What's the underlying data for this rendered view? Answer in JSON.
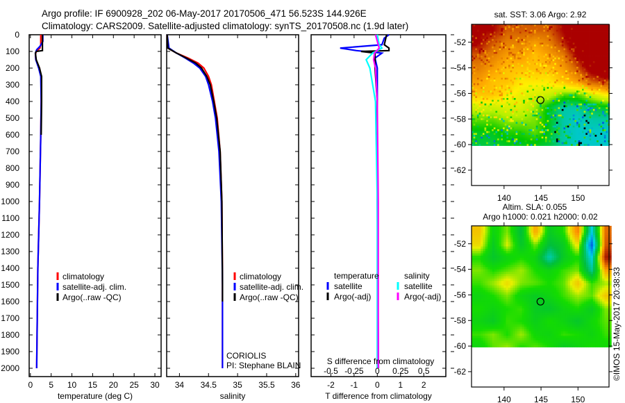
{
  "header": {
    "line1": "Argo profile: IF 6900928_202 06-May-2017 20170506_471 56.523S 144.926E",
    "line2": "Climatology: CARS2009. Satellite-adjusted climatology: synTS_20170508.nc (1.9d later)"
  },
  "credit": "©IMOS 15-May-2017 20:38:33",
  "colors": {
    "climatology": "#ff0000",
    "satellite": "#0000ff",
    "argo": "#000000",
    "sal_satellite": "#00ffff",
    "sal_argo": "#ff00ff"
  },
  "chart_data": [
    {
      "type": "line",
      "id": "temperature",
      "xlabel": "temperature (deg C)",
      "ylabel": "depth",
      "xlim": [
        -0.3,
        31.5
      ],
      "ylim": [
        2050,
        0
      ],
      "xticks": [
        0,
        5,
        10,
        15,
        20,
        25,
        30
      ],
      "yticks": [
        0,
        100,
        200,
        300,
        400,
        500,
        600,
        700,
        800,
        900,
        1000,
        1100,
        1200,
        1300,
        1400,
        1500,
        1600,
        1700,
        1800,
        1900,
        2000
      ],
      "legend": [
        "climatology",
        "satellite-adj. clim.",
        "Argo(..raw -QC)"
      ],
      "series": [
        {
          "name": "climatology",
          "color": "#ff0000",
          "depth": [
            0,
            60,
            80,
            100,
            120,
            150,
            200,
            250,
            400,
            600,
            1000,
            1400,
            2000
          ],
          "values": [
            2.5,
            2.5,
            2.3,
            1.4,
            1.2,
            1.3,
            2.2,
            2.6,
            2.6,
            2.5,
            2.2,
            1.8,
            1.5
          ]
        },
        {
          "name": "satellite-adj. clim.",
          "color": "#0000ff",
          "depth": [
            0,
            40,
            70,
            90,
            110,
            150,
            200,
            250,
            400,
            600,
            1000,
            1400,
            2000
          ],
          "values": [
            3.0,
            3.0,
            2.3,
            1.5,
            1.2,
            1.3,
            2.0,
            2.5,
            2.6,
            2.5,
            2.2,
            1.8,
            1.5
          ]
        },
        {
          "name": "Argo(..raw -QC)",
          "color": "#000000",
          "depth": [
            0,
            50,
            80,
            95,
            100,
            110,
            150,
            200,
            250,
            400,
            600
          ],
          "values": [
            2.9,
            2.9,
            2.9,
            2.9,
            1.4,
            1.2,
            1.4,
            2.2,
            2.7,
            2.7,
            2.6
          ]
        }
      ]
    },
    {
      "type": "line",
      "id": "salinity",
      "xlabel": "salinity",
      "xlim": [
        33.78,
        36.05
      ],
      "ylim": [
        2050,
        0
      ],
      "xticks": [
        34,
        34.5,
        35,
        35.5,
        36
      ],
      "legend": [
        "climatology",
        "satellite-adj. clim.",
        "Argo(..raw -QC)"
      ],
      "annotation": [
        "CORIOLIS",
        "PI: Stephane BLAIN"
      ],
      "series": [
        {
          "name": "climatology",
          "color": "#ff0000",
          "depth": [
            0,
            80,
            110,
            140,
            170,
            200,
            250,
            300,
            400,
            500,
            700,
            1000,
            1500,
            2000
          ],
          "values": [
            33.79,
            33.8,
            33.95,
            34.15,
            34.32,
            34.42,
            34.5,
            34.55,
            34.6,
            34.65,
            34.7,
            34.73,
            34.74,
            34.74
          ]
        },
        {
          "name": "satellite-adj. clim.",
          "color": "#0000ff",
          "depth": [
            0,
            80,
            110,
            140,
            170,
            200,
            250,
            300,
            400,
            500,
            700,
            1000,
            1500,
            2000
          ],
          "values": [
            33.79,
            33.82,
            33.95,
            34.1,
            34.24,
            34.35,
            34.45,
            34.5,
            34.57,
            34.62,
            34.68,
            34.72,
            34.74,
            34.74
          ]
        },
        {
          "name": "Argo(..raw -QC)",
          "color": "#000000",
          "depth": [
            0,
            80,
            110,
            140,
            170,
            200,
            250,
            300,
            400,
            500,
            700,
            1000,
            1500,
            1600
          ],
          "values": [
            33.79,
            33.8,
            33.95,
            34.12,
            34.28,
            34.38,
            34.47,
            34.53,
            34.59,
            34.64,
            34.7,
            34.73,
            34.74,
            34.74
          ]
        }
      ]
    },
    {
      "type": "line",
      "id": "difference",
      "xlabel": "T difference from climatology",
      "x2label": "S difference from climatology",
      "xlim": [
        -2.85,
        2.95
      ],
      "ylim": [
        2050,
        0
      ],
      "xticks": [
        -2,
        -1,
        0,
        1,
        2
      ],
      "x2ticks": [
        -0.5,
        -0.25,
        0,
        0.25,
        0.5
      ],
      "x2tick_labels": [
        "-0.5",
        "-0.25",
        "0",
        "0.25",
        "0.5"
      ],
      "legend_titles": [
        "temperature",
        "salinity"
      ],
      "legend": [
        "satellite",
        "Argo(-adj)",
        "satellite",
        "Argo(-adj)"
      ],
      "series": [
        {
          "name": "T satellite",
          "color": "#0000ff",
          "scale": "T",
          "depth": [
            0,
            20,
            60,
            80,
            95,
            110,
            140,
            200,
            400,
            1000,
            2000
          ],
          "values": [
            0.5,
            0.3,
            0.2,
            -1.6,
            -0.9,
            0.2,
            -0.1,
            0.0,
            0.0,
            0.0,
            0.05
          ]
        },
        {
          "name": "T Argo(-adj)",
          "color": "#000000",
          "scale": "T",
          "depth": [
            0,
            60,
            80,
            95,
            100,
            110,
            200,
            400,
            600
          ],
          "values": [
            0.4,
            0.3,
            0.5,
            0.5,
            -0.7,
            -0.1,
            -0.1,
            0.0,
            0.0
          ]
        },
        {
          "name": "S satellite",
          "color": "#00ffff",
          "scale": "S",
          "depth": [
            0,
            60,
            80,
            110,
            150,
            200,
            400,
            1000,
            2000
          ],
          "values": [
            0.0,
            0.02,
            0.05,
            -0.05,
            -0.12,
            -0.08,
            -0.02,
            0.0,
            0.0
          ]
        },
        {
          "name": "S Argo(-adj)",
          "color": "#ff00ff",
          "scale": "S",
          "depth": [
            0,
            80,
            110,
            150,
            200,
            400,
            1000,
            2000
          ],
          "values": [
            -0.02,
            0.02,
            -0.03,
            -0.04,
            -0.02,
            0.0,
            0.01,
            0.01
          ]
        }
      ]
    },
    {
      "type": "heatmap",
      "id": "sst_map",
      "title": "sat. SST: 3.06 Argo: 2.92",
      "xlim": [
        135.6,
        154.2
      ],
      "ylim": [
        -63.2,
        -50.6
      ],
      "xticks": [
        140,
        145,
        150
      ],
      "yticks": [
        -52,
        -54,
        -56,
        -58,
        -60,
        -62
      ],
      "ytick_labels": [
        "-52",
        "-54",
        "-56",
        "-58",
        "-60",
        "-62"
      ],
      "grid_lon": [
        136.5,
        138.4,
        140.3,
        142.2,
        144.1,
        146.0,
        147.9,
        149.8,
        151.7,
        153.6
      ],
      "grid_lat": [
        -51,
        -52,
        -53,
        -54,
        -55,
        -56,
        -57,
        -58,
        -59,
        -60
      ],
      "values": [
        [
          7,
          7,
          6,
          6,
          6,
          6,
          7,
          8,
          8,
          8
        ],
        [
          7,
          6,
          5.5,
          5.5,
          5,
          5.5,
          6.5,
          8,
          8,
          8
        ],
        [
          6,
          5.5,
          5,
          5,
          4.5,
          5,
          5.5,
          7,
          8,
          8
        ],
        [
          5.5,
          5,
          4.5,
          4.5,
          4.5,
          4.5,
          5,
          6,
          7.5,
          8
        ],
        [
          5,
          4.5,
          4.5,
          4,
          4,
          4,
          4.5,
          5,
          6,
          6.5
        ],
        [
          4.5,
          4.5,
          4,
          3.7,
          3.6,
          3.5,
          3,
          3,
          3.5,
          4
        ],
        [
          3.5,
          3.5,
          3.6,
          3.6,
          3.2,
          2.6,
          2.2,
          2.2,
          2.5,
          2.6
        ],
        [
          3,
          3,
          3.2,
          3.2,
          3.1,
          2.6,
          2.2,
          2.1,
          2.2,
          2.2
        ],
        [
          2.6,
          2.6,
          2.8,
          2.8,
          3,
          2.6,
          2.2,
          2.1,
          2.1,
          2.1
        ],
        [
          2.5,
          2.5,
          2.6,
          2.6,
          2.6,
          2.5,
          2.2,
          2.1,
          2.1,
          2.1
        ]
      ],
      "argo_position": [
        144.926,
        -56.523
      ]
    },
    {
      "type": "heatmap",
      "id": "sla_map",
      "title": "Altim. SLA: 0.055",
      "subtitle": "Argo h1000: 0.021 h2000: 0.02",
      "xlim": [
        135.6,
        154.2
      ],
      "ylim": [
        -63.2,
        -50.6
      ],
      "xticks": [
        140,
        145,
        150
      ],
      "yticks": [
        -52,
        -54,
        -56,
        -58,
        -60,
        -62
      ],
      "ytick_labels": [
        "-52",
        "-54",
        "-56",
        "-58",
        "-60",
        "-62"
      ],
      "grid_lon": [
        136.5,
        138.4,
        140.3,
        142.2,
        144.1,
        146.0,
        147.9,
        149.8,
        151.7,
        153.6
      ],
      "grid_lat": [
        -51,
        -52,
        -53,
        -54,
        -55,
        -56,
        -57,
        -58,
        -59,
        -60
      ],
      "values": [
        [
          0.12,
          0.0,
          0.05,
          -0.05,
          0.15,
          -0.02,
          0.02,
          0.18,
          -0.15,
          0.2
        ],
        [
          0.1,
          -0.02,
          0.08,
          -0.03,
          0.05,
          -0.05,
          -0.02,
          0.1,
          -0.25,
          0.22
        ],
        [
          0.02,
          -0.03,
          0.0,
          0.02,
          0.0,
          -0.12,
          -0.02,
          0.02,
          -0.15,
          0.28
        ],
        [
          0.05,
          0.02,
          0.04,
          0.06,
          0.02,
          0.0,
          0.03,
          0.05,
          -0.1,
          0.15
        ],
        [
          0.03,
          0.06,
          0.1,
          0.05,
          0.04,
          0.02,
          0.04,
          0.12,
          0.03,
          0.06
        ],
        [
          0.0,
          0.02,
          0.05,
          0.0,
          -0.02,
          0.0,
          0.03,
          0.06,
          0.04,
          0.12
        ],
        [
          0.02,
          0.0,
          0.02,
          0.03,
          -0.02,
          -0.03,
          0.0,
          0.02,
          -0.02,
          0.05
        ],
        [
          0.0,
          -0.02,
          0.03,
          0.02,
          -0.01,
          0.02,
          0.0,
          -0.03,
          0.01,
          0.04
        ],
        [
          0.03,
          0.05,
          0.02,
          0.06,
          0.01,
          0.0,
          0.03,
          0.02,
          0.0,
          0.03
        ],
        [
          0.0,
          0.04,
          0.06,
          0.02,
          0.04,
          0.02,
          -0.02,
          0.0,
          0.02,
          0.01
        ]
      ],
      "argo_position": [
        144.926,
        -56.523
      ]
    }
  ]
}
